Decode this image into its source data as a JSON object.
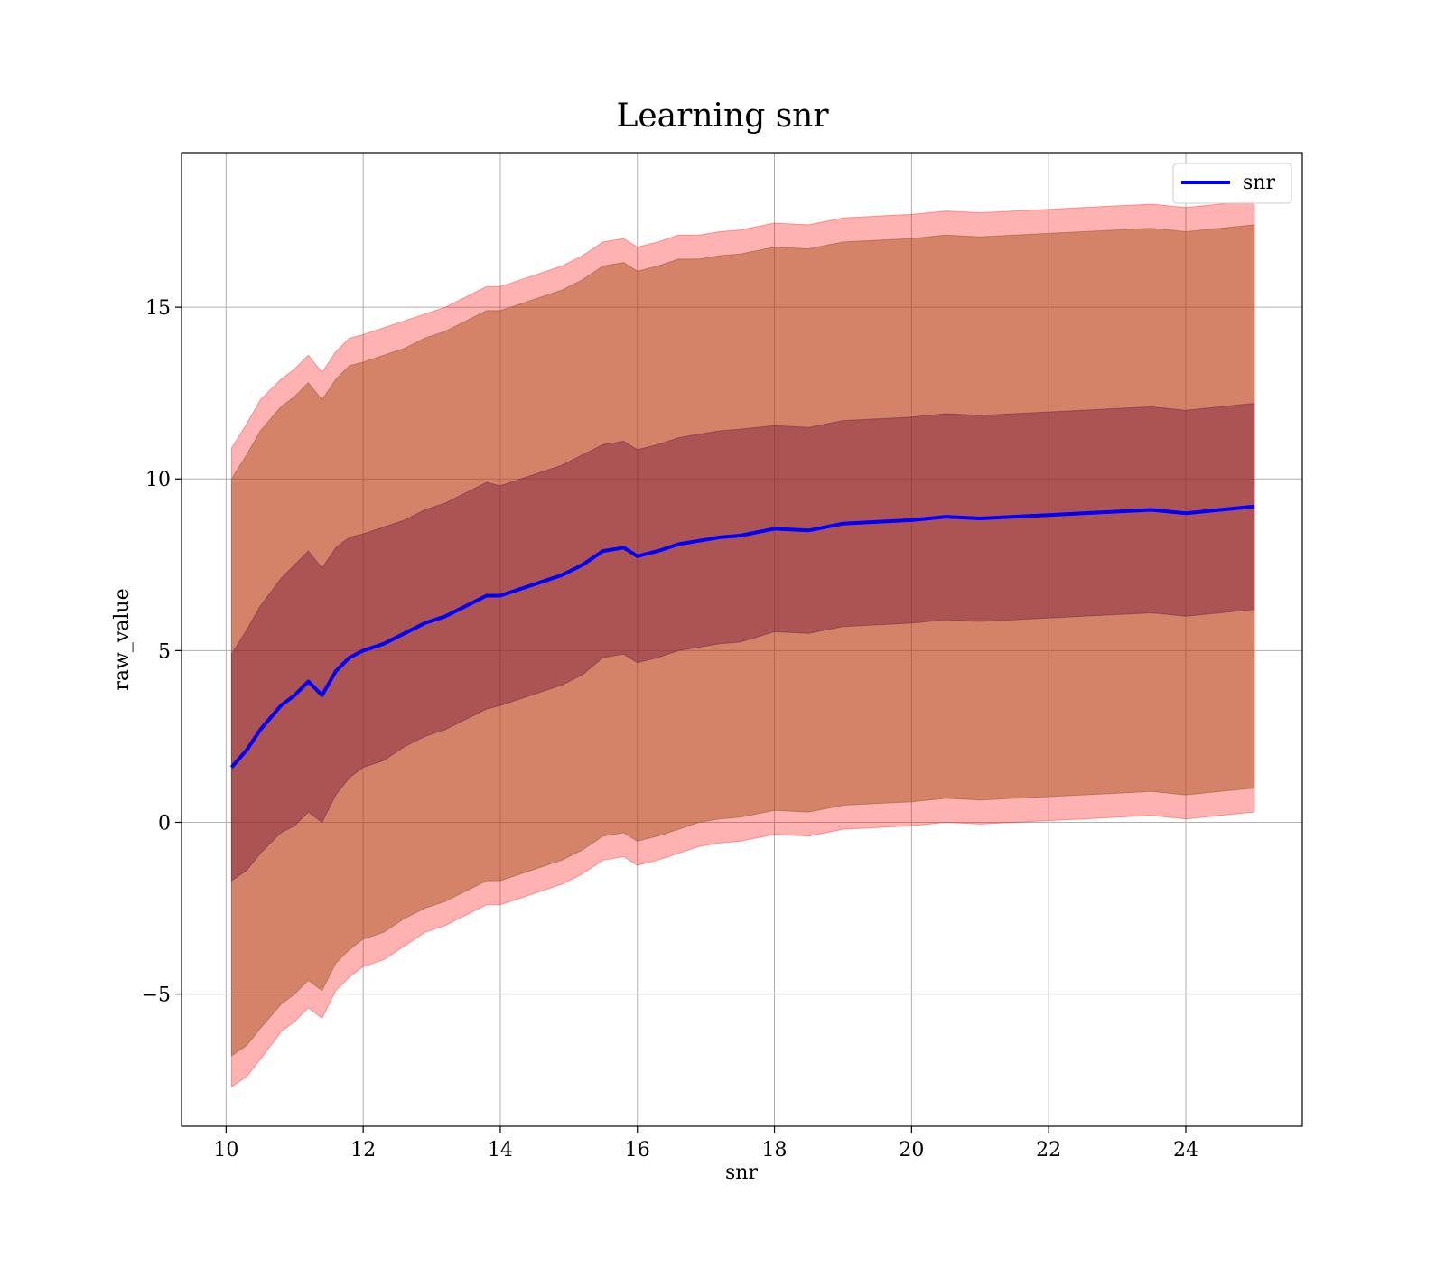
{
  "chart_data": {
    "type": "line",
    "title": "Learning snr",
    "xlabel": "snr",
    "ylabel": "raw_value",
    "xlim": [
      9.35,
      25.7
    ],
    "ylim": [
      -8.85,
      19.5
    ],
    "xticks": [
      10,
      12,
      14,
      16,
      18,
      20,
      22,
      24
    ],
    "yticks": [
      -5,
      0,
      5,
      10,
      15
    ],
    "ytick_labels": [
      "−5",
      "0",
      "5",
      "10",
      "15"
    ],
    "grid": true,
    "legend": {
      "placement": "top-right",
      "entries": [
        "snr"
      ]
    },
    "colors": {
      "line": "#0000ff",
      "outer_band": "#ff0000",
      "inner_band": "#800000",
      "grid": "#b0b0b0"
    },
    "series": [
      {
        "name": "snr",
        "x": [
          10.08,
          10.3,
          10.5,
          10.8,
          11.0,
          11.2,
          11.4,
          11.6,
          11.8,
          12.0,
          12.3,
          12.6,
          12.9,
          13.2,
          13.5,
          13.8,
          14.0,
          14.3,
          14.6,
          14.9,
          15.2,
          15.5,
          15.8,
          16.0,
          16.3,
          16.6,
          16.9,
          17.2,
          17.5,
          18.0,
          18.5,
          19.0,
          19.5,
          20.0,
          20.5,
          21.0,
          21.5,
          22.0,
          22.5,
          23.0,
          23.5,
          24.0,
          24.5,
          25.0
        ],
        "mean": [
          1.6,
          2.1,
          2.7,
          3.4,
          3.7,
          4.1,
          3.7,
          4.4,
          4.8,
          5.0,
          5.2,
          5.5,
          5.8,
          6.0,
          6.3,
          6.6,
          6.6,
          6.8,
          7.0,
          7.2,
          7.5,
          7.9,
          8.0,
          7.75,
          7.9,
          8.1,
          8.2,
          8.3,
          8.35,
          8.55,
          8.5,
          8.7,
          8.75,
          8.8,
          8.9,
          8.85,
          8.9,
          8.95,
          9.0,
          9.05,
          9.1,
          9.0,
          9.1,
          9.2
        ],
        "inner_band": [
          3.3,
          3.5,
          3.6,
          3.7,
          3.8,
          3.8,
          3.7,
          3.6,
          3.5,
          3.4,
          3.4,
          3.3,
          3.3,
          3.3,
          3.3,
          3.3,
          3.2,
          3.2,
          3.2,
          3.2,
          3.2,
          3.1,
          3.1,
          3.1,
          3.1,
          3.1,
          3.1,
          3.1,
          3.1,
          3.0,
          3.0,
          3.0,
          3.0,
          3.0,
          3.0,
          3.0,
          3.0,
          3.0,
          3.0,
          3.0,
          3.0,
          3.0,
          3.0,
          3.0
        ],
        "outer_band": [
          8.4,
          8.6,
          8.7,
          8.7,
          8.7,
          8.7,
          8.6,
          8.5,
          8.5,
          8.4,
          8.4,
          8.3,
          8.3,
          8.3,
          8.3,
          8.3,
          8.3,
          8.3,
          8.3,
          8.3,
          8.3,
          8.3,
          8.3,
          8.3,
          8.3,
          8.3,
          8.2,
          8.2,
          8.2,
          8.2,
          8.2,
          8.2,
          8.2,
          8.2,
          8.2,
          8.2,
          8.2,
          8.2,
          8.2,
          8.2,
          8.2,
          8.2,
          8.2,
          8.2
        ],
        "outer_band_lower_extra": [
          0.9,
          0.9,
          0.9,
          0.8,
          0.8,
          0.8,
          0.8,
          0.8,
          0.8,
          0.8,
          0.8,
          0.8,
          0.7,
          0.7,
          0.7,
          0.7,
          0.7,
          0.7,
          0.7,
          0.7,
          0.7,
          0.7,
          0.7,
          0.7,
          0.7,
          0.7,
          0.7,
          0.7,
          0.7,
          0.7,
          0.7,
          0.7,
          0.7,
          0.7,
          0.7,
          0.7,
          0.7,
          0.7,
          0.7,
          0.7,
          0.7,
          0.7,
          0.7,
          0.7
        ],
        "outer_band_upper_extra": [
          0.9,
          0.9,
          0.9,
          0.8,
          0.8,
          0.8,
          0.8,
          0.8,
          0.8,
          0.8,
          0.8,
          0.8,
          0.7,
          0.7,
          0.7,
          0.7,
          0.7,
          0.7,
          0.7,
          0.7,
          0.7,
          0.7,
          0.7,
          0.7,
          0.7,
          0.7,
          0.7,
          0.7,
          0.7,
          0.7,
          0.7,
          0.7,
          0.7,
          0.7,
          0.7,
          0.7,
          0.7,
          0.7,
          0.7,
          0.7,
          0.7,
          0.7,
          0.7,
          0.7
        ]
      }
    ]
  }
}
